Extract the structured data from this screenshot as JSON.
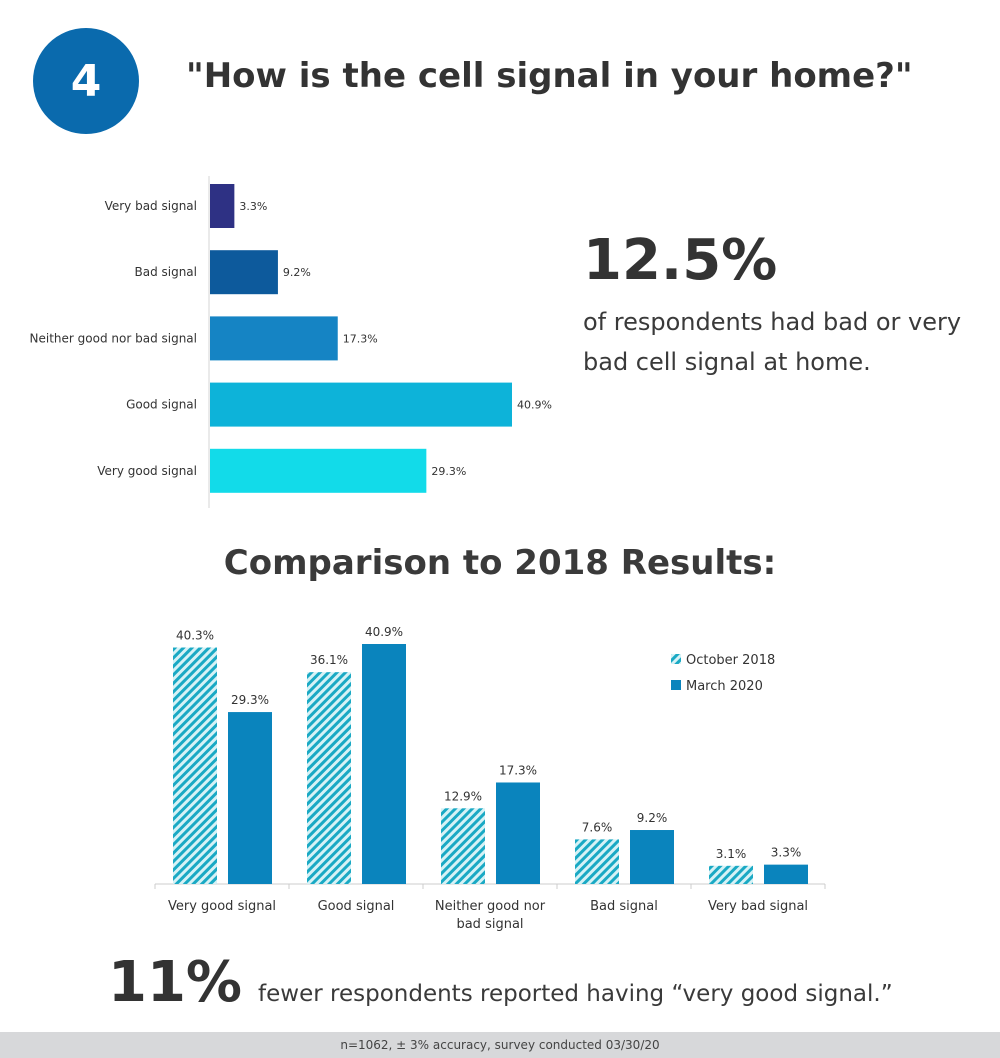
{
  "badge_number": "4",
  "question": "\"How is the cell signal in your home?\"",
  "stat": {
    "value": "12.5%",
    "text": "of respondents had bad or very bad cell signal at home."
  },
  "comparison_title": "Comparison to 2018 Results:",
  "bottom": {
    "value": "11%",
    "text": "fewer respondents reported having “very good signal.”"
  },
  "footer": "n=1062, ± 3% accuracy, survey conducted 03/30/20",
  "chart_data": [
    {
      "type": "bar",
      "orientation": "horizontal",
      "categories": [
        "Very bad signal",
        "Bad signal",
        "Neither good nor bad signal",
        "Good signal",
        "Very good signal"
      ],
      "values": [
        3.3,
        9.2,
        17.3,
        40.9,
        29.3
      ],
      "value_labels": [
        "3.3%",
        "9.2%",
        "17.3%",
        "40.9%",
        "29.3%"
      ],
      "colors": [
        "#2e3184",
        "#0d5a9c",
        "#1584c4",
        "#0db3d9",
        "#12dbe9"
      ],
      "xlim": [
        0,
        45
      ],
      "grid": false
    },
    {
      "type": "bar",
      "orientation": "vertical",
      "categories": [
        "Very good signal",
        "Good signal",
        "Neither good nor bad signal",
        "Bad signal",
        "Very bad signal"
      ],
      "category_lines": [
        [
          "Very good signal"
        ],
        [
          "Good signal"
        ],
        [
          "Neither good nor",
          "bad signal"
        ],
        [
          "Bad signal"
        ],
        [
          "Very bad signal"
        ]
      ],
      "series": [
        {
          "name": "October 2018",
          "values": [
            40.3,
            36.1,
            12.9,
            7.6,
            3.1
          ],
          "labels": [
            "40.3%",
            "36.1%",
            "12.9%",
            "7.6%",
            "3.1%"
          ],
          "color": "#1aa9c4",
          "pattern": "hatched"
        },
        {
          "name": "March 2020",
          "values": [
            29.3,
            40.9,
            17.3,
            9.2,
            3.3
          ],
          "labels": [
            "29.3%",
            "40.9%",
            "17.3%",
            "9.2%",
            "3.3%"
          ],
          "color": "#0a84bd",
          "pattern": "solid"
        }
      ],
      "ylim": [
        0,
        45
      ],
      "grid": false,
      "legend_position": "top-right"
    }
  ]
}
